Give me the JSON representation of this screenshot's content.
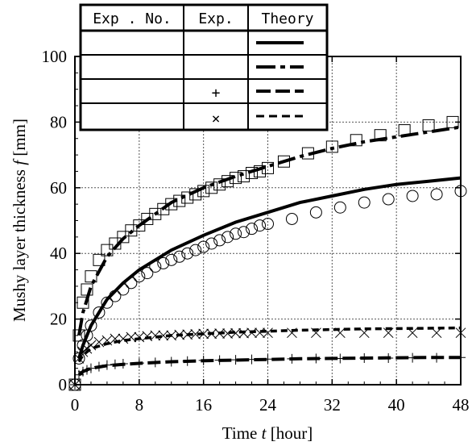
{
  "chart_data": {
    "type": "scatter",
    "xlabel_prefix": "Time ",
    "xlabel_var": "t",
    "xlabel_suffix": " [hour]",
    "ylabel_prefix": "Mushy layer thickness ",
    "ylabel_var": "f",
    "ylabel_suffix": " [mm]",
    "xlim": [
      0,
      48
    ],
    "ylim": [
      0,
      100
    ],
    "xticks": [
      0,
      8,
      16,
      24,
      32,
      40,
      48
    ],
    "yticks": [
      0,
      20,
      40,
      60,
      80,
      100
    ],
    "grid": true,
    "legend": {
      "placement": "top-left",
      "headers": [
        "Exp . No.",
        "Exp.",
        "Theory"
      ],
      "rows": [
        {
          "exp_no": "",
          "exp_marker": "○",
          "theory_style": "solid"
        },
        {
          "exp_no": "",
          "exp_marker": "□",
          "theory_style": "dash-dot"
        },
        {
          "exp_no": "",
          "exp_marker": "+",
          "theory_style": "long-dash"
        },
        {
          "exp_no": "",
          "exp_marker": "×",
          "theory_style": "short-dash"
        }
      ]
    },
    "series": [
      {
        "marker": "circle",
        "x": [
          0,
          0.5,
          1,
          1.5,
          2,
          3,
          4,
          5,
          6,
          7,
          8,
          9,
          10,
          11,
          12,
          13,
          14,
          15,
          16,
          17,
          18,
          19,
          20,
          21,
          22,
          23,
          24,
          27,
          30,
          33,
          36,
          39,
          42,
          45,
          48
        ],
        "y": [
          0,
          8,
          12,
          15,
          18,
          22,
          25,
          27,
          29,
          31,
          33,
          34,
          36,
          37,
          38,
          39,
          40,
          41,
          42,
          43,
          44,
          45,
          46,
          46.5,
          47.5,
          48.5,
          49,
          50.5,
          52.5,
          54,
          55.5,
          56.5,
          57.5,
          58,
          59
        ]
      },
      {
        "marker": "square",
        "x": [
          0,
          0.5,
          1,
          1.5,
          2,
          3,
          4,
          5,
          6,
          7,
          8,
          9,
          10,
          11,
          12,
          13,
          14,
          15,
          16,
          17,
          18,
          19,
          20,
          21,
          22,
          23,
          24,
          26,
          29,
          32,
          35,
          38,
          41,
          44,
          47
        ],
        "y": [
          0,
          15,
          25,
          29,
          33,
          38,
          41,
          43,
          45,
          47,
          48.5,
          50.5,
          52,
          53.5,
          55,
          56,
          57,
          58,
          59,
          60,
          61,
          62,
          63,
          63.5,
          64.5,
          65,
          66,
          68,
          70.5,
          72.5,
          74.5,
          76,
          77.5,
          79,
          80
        ]
      },
      {
        "marker": "plus",
        "x": [
          0,
          0.5,
          1,
          1.5,
          2,
          3,
          4,
          5,
          6,
          8,
          10,
          12,
          14,
          16,
          18,
          20,
          22,
          24,
          27,
          30,
          33,
          36,
          39,
          42,
          45,
          48
        ],
        "y": [
          0,
          3,
          4,
          4.5,
          5,
          5.5,
          6,
          6.2,
          6.4,
          6.6,
          6.8,
          7,
          7.2,
          7.4,
          7.5,
          7.6,
          7.7,
          7.8,
          7.9,
          8,
          8,
          8.1,
          8.1,
          8.2,
          8.2,
          8.3
        ]
      },
      {
        "marker": "cross",
        "x": [
          0,
          0.5,
          1,
          1.5,
          2,
          3,
          4,
          5,
          6,
          7,
          8,
          9,
          10,
          11,
          12,
          13,
          14,
          15,
          16,
          17,
          18,
          19,
          20,
          21,
          22,
          23,
          24,
          27,
          30,
          33,
          36,
          39,
          42,
          45,
          48
        ],
        "y": [
          0,
          8,
          10,
          11,
          12,
          13,
          13.5,
          14,
          14,
          14.5,
          14.5,
          14.8,
          15,
          15,
          15,
          15.2,
          15.3,
          15.4,
          15.5,
          15.5,
          15.6,
          15.6,
          15.7,
          15.7,
          15.8,
          15.8,
          15.8,
          15.8,
          15.8,
          15.8,
          15.8,
          15.8,
          15.8,
          15.8,
          15.8
        ]
      }
    ],
    "theory_curves": [
      {
        "style": "solid",
        "x": [
          0.5,
          1,
          2,
          4,
          6,
          8,
          12,
          16,
          20,
          24,
          28,
          32,
          36,
          40,
          44,
          48
        ],
        "y": [
          8,
          12,
          18,
          26,
          31,
          35,
          41,
          45.5,
          49.5,
          52.5,
          55.5,
          57.5,
          59.5,
          61,
          62,
          63
        ]
      },
      {
        "style": "dash-dot",
        "x": [
          0.5,
          1,
          2,
          4,
          6,
          8,
          12,
          16,
          20,
          24,
          28,
          32,
          36,
          40,
          44,
          48
        ],
        "y": [
          15,
          22,
          30,
          39,
          44.5,
          48.5,
          55.5,
          60,
          63.5,
          66.5,
          69.5,
          72,
          74,
          75.5,
          77,
          78.5
        ]
      },
      {
        "style": "long-dash",
        "x": [
          0.5,
          1,
          2,
          4,
          6,
          8,
          12,
          16,
          20,
          24,
          28,
          32,
          36,
          40,
          44,
          48
        ],
        "y": [
          3,
          4,
          5,
          5.8,
          6.2,
          6.5,
          7,
          7.3,
          7.5,
          7.7,
          7.9,
          8,
          8.1,
          8.2,
          8.3,
          8.3
        ]
      },
      {
        "style": "short-dash",
        "x": [
          0.5,
          1,
          2,
          4,
          6,
          8,
          12,
          16,
          20,
          24,
          28,
          32,
          36,
          40,
          44,
          48
        ],
        "y": [
          7,
          9,
          11,
          12.5,
          13.5,
          14,
          15,
          15.5,
          16,
          16.3,
          16.6,
          16.8,
          17,
          17.1,
          17.2,
          17.3
        ]
      }
    ]
  }
}
